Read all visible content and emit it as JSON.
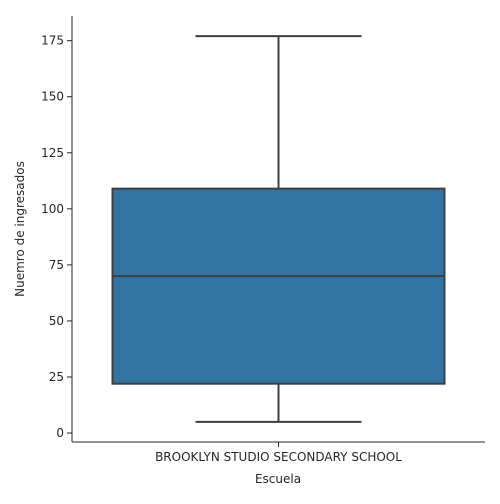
{
  "chart_data": {
    "type": "box",
    "title": "",
    "xlabel": "Escuela",
    "ylabel": "Nuemro de ingresados",
    "categories": [
      "BROOKLYN STUDIO SECONDARY SCHOOL"
    ],
    "boxes": [
      {
        "category": "BROOKLYN STUDIO SECONDARY SCHOOL",
        "whisker_low": 5,
        "q1": 22,
        "median": 70,
        "q3": 109,
        "whisker_high": 177
      }
    ],
    "yticks": [
      0,
      25,
      50,
      75,
      100,
      125,
      150,
      175
    ],
    "ylim": [
      -4,
      186
    ],
    "grid": false,
    "box_color": "#3274a1",
    "line_color": "#3f3f3f"
  }
}
